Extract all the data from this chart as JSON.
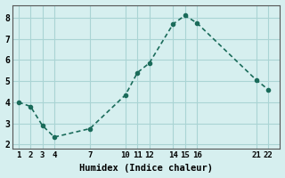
{
  "x": [
    1,
    2,
    3,
    4,
    7,
    10,
    11,
    12,
    14,
    15,
    16,
    21,
    22
  ],
  "y": [
    4.0,
    3.8,
    2.9,
    2.35,
    2.75,
    4.35,
    5.4,
    5.85,
    7.7,
    8.1,
    7.75,
    5.05,
    4.6
  ],
  "xlabel": "Humidex (Indice chaleur)",
  "xticks": [
    1,
    2,
    3,
    4,
    7,
    10,
    11,
    12,
    14,
    15,
    16,
    21,
    22
  ],
  "yticks": [
    2,
    3,
    4,
    5,
    6,
    7,
    8
  ],
  "ylim": [
    1.8,
    8.6
  ],
  "xlim": [
    0.5,
    23
  ],
  "line_color": "#1a6b5a",
  "bg_color": "#d6efef",
  "grid_color": "#aad4d4",
  "title_fontsize": 9,
  "label_fontsize": 8.5
}
